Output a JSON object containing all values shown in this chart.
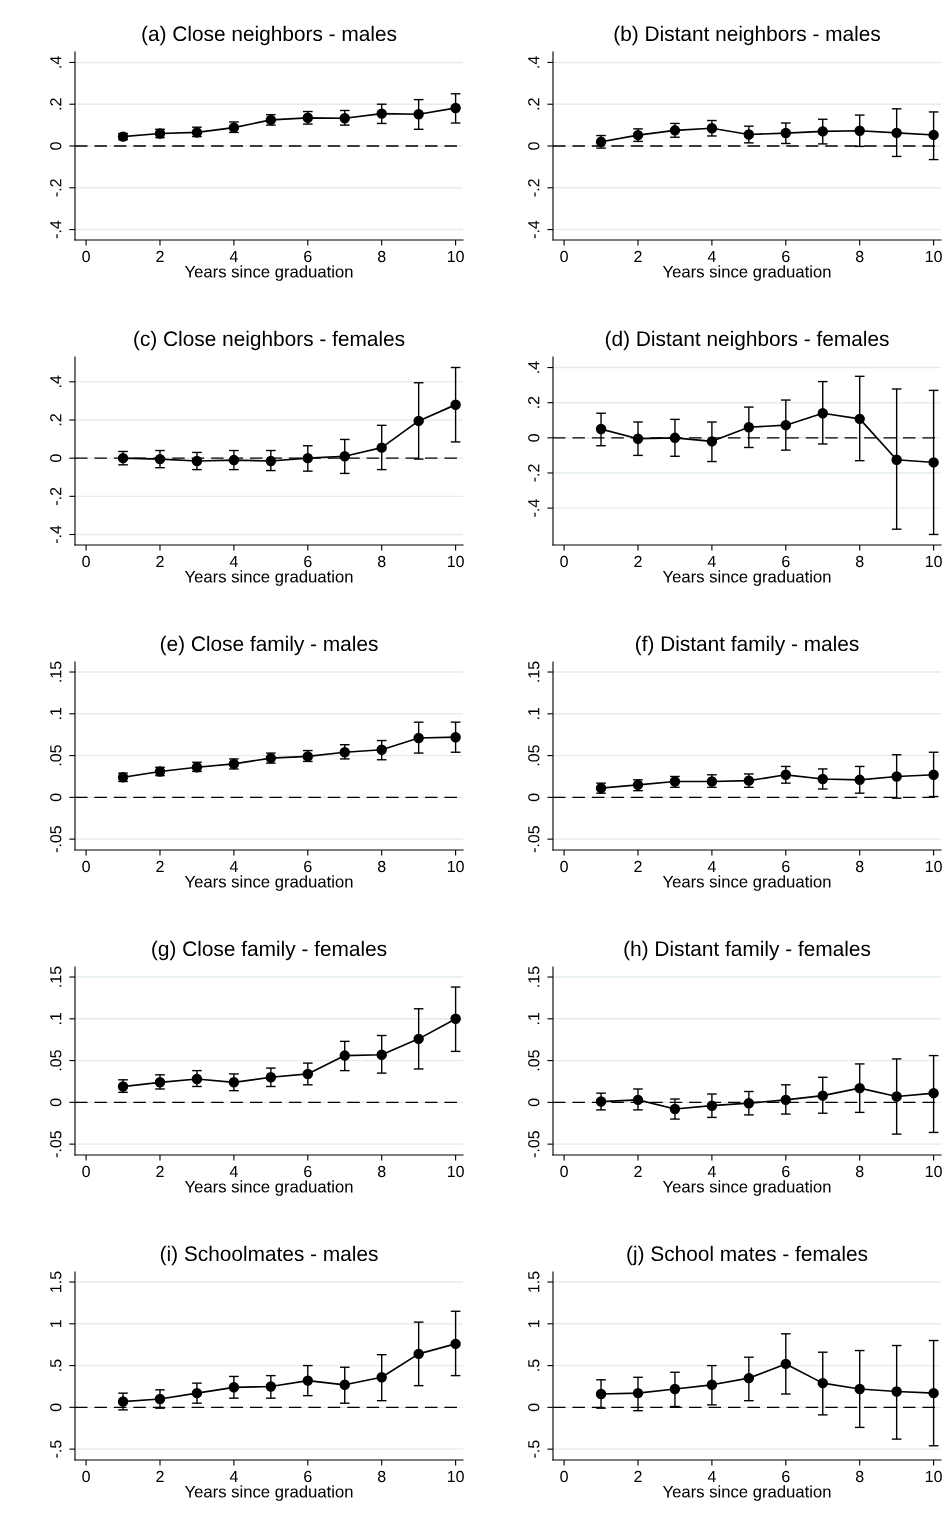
{
  "chart_data": [
    {
      "type": "line",
      "title": "(a) Close neighbors - males",
      "xlabel": "Years since graduation",
      "x": [
        1,
        2,
        3,
        4,
        5,
        6,
        7,
        8,
        9,
        10
      ],
      "color": "#000000",
      "marker": "circle",
      "line_style": "solid",
      "grid": "y",
      "values": [
        0.045,
        0.06,
        0.065,
        0.088,
        0.125,
        0.135,
        0.133,
        0.155,
        0.152,
        0.182
      ],
      "errors": [
        [
          0.03,
          0.06
        ],
        [
          0.04,
          0.08
        ],
        [
          0.045,
          0.09
        ],
        [
          0.065,
          0.115
        ],
        [
          0.1,
          0.15
        ],
        [
          0.105,
          0.165
        ],
        [
          0.1,
          0.17
        ],
        [
          0.108,
          0.2
        ],
        [
          0.08,
          0.222
        ],
        [
          0.11,
          0.25
        ]
      ],
      "xlim": [
        -0.3,
        10.2
      ],
      "xticks": [
        0,
        2,
        4,
        6,
        8,
        10
      ],
      "ylim": [
        -0.45,
        0.45
      ],
      "yticks": [
        {
          "value": -0.4,
          "label": "-.4"
        },
        {
          "value": -0.2,
          "label": "-.2"
        },
        0,
        {
          "value": 0.2,
          "label": ".2"
        },
        {
          "value": 0.4,
          "label": ".4"
        }
      ],
      "ref_lines": [
        {
          "axis": "y",
          "value": 0,
          "line_style": "dashed",
          "color": "#000000"
        }
      ]
    },
    {
      "type": "line",
      "title": "(b) Distant neighbors - males",
      "xlabel": "Years since graduation",
      "x": [
        1,
        2,
        3,
        4,
        5,
        6,
        7,
        8,
        9,
        10
      ],
      "color": "#000000",
      "marker": "circle",
      "line_style": "solid",
      "grid": "y",
      "values": [
        0.02,
        0.052,
        0.075,
        0.085,
        0.055,
        0.062,
        0.07,
        0.073,
        0.063,
        0.053
      ],
      "errors": [
        [
          -0.01,
          0.05
        ],
        [
          0.022,
          0.082
        ],
        [
          0.042,
          0.108
        ],
        [
          0.048,
          0.122
        ],
        [
          0.015,
          0.095
        ],
        [
          0.012,
          0.11
        ],
        [
          0.01,
          0.128
        ],
        [
          -0.002,
          0.148
        ],
        [
          -0.05,
          0.178
        ],
        [
          -0.065,
          0.163
        ]
      ],
      "xlim": [
        -0.3,
        10.2
      ],
      "xticks": [
        0,
        2,
        4,
        6,
        8,
        10
      ],
      "ylim": [
        -0.45,
        0.45
      ],
      "yticks": [
        {
          "value": -0.4,
          "label": "-.4"
        },
        {
          "value": -0.2,
          "label": "-.2"
        },
        0,
        {
          "value": 0.2,
          "label": ".2"
        },
        {
          "value": 0.4,
          "label": ".4"
        }
      ],
      "ref_lines": [
        {
          "axis": "y",
          "value": 0,
          "line_style": "dashed",
          "color": "#000000"
        }
      ]
    },
    {
      "type": "line",
      "title": "(c) Close neighbors - females",
      "xlabel": "Years since graduation",
      "x": [
        1,
        2,
        3,
        4,
        5,
        6,
        7,
        8,
        9,
        10
      ],
      "color": "#000000",
      "marker": "circle",
      "line_style": "solid",
      "grid": "y",
      "values": [
        0,
        -0.005,
        -0.015,
        -0.01,
        -0.015,
        0,
        0.01,
        0.055,
        0.195,
        0.28
      ],
      "errors": [
        [
          -0.035,
          0.035
        ],
        [
          -0.05,
          0.04
        ],
        [
          -0.06,
          0.03
        ],
        [
          -0.06,
          0.04
        ],
        [
          -0.065,
          0.04
        ],
        [
          -0.068,
          0.065
        ],
        [
          -0.08,
          0.098
        ],
        [
          -0.06,
          0.172
        ],
        [
          -0.005,
          0.395
        ],
        [
          0.085,
          0.475
        ]
      ],
      "xlim": [
        -0.3,
        10.2
      ],
      "xticks": [
        0,
        2,
        4,
        6,
        8,
        10
      ],
      "ylim": [
        -0.455,
        0.53
      ],
      "yticks": [
        {
          "value": -0.4,
          "label": "-.4"
        },
        {
          "value": -0.2,
          "label": "-.2"
        },
        0,
        {
          "value": 0.2,
          "label": ".2"
        },
        {
          "value": 0.4,
          "label": ".4"
        }
      ],
      "ref_lines": [
        {
          "axis": "y",
          "value": 0,
          "line_style": "dashed",
          "color": "#000000"
        }
      ]
    },
    {
      "type": "line",
      "title": "(d) Distant neighbors - females",
      "xlabel": "Years since graduation",
      "x": [
        1,
        2,
        3,
        4,
        5,
        6,
        7,
        8,
        9,
        10
      ],
      "color": "#000000",
      "marker": "circle",
      "line_style": "solid",
      "grid": "y",
      "values": [
        0.05,
        -0.005,
        0,
        -0.02,
        0.06,
        0.072,
        0.14,
        0.108,
        -0.125,
        -0.14
      ],
      "errors": [
        [
          -0.045,
          0.14
        ],
        [
          -0.1,
          0.09
        ],
        [
          -0.105,
          0.105
        ],
        [
          -0.135,
          0.09
        ],
        [
          -0.055,
          0.175
        ],
        [
          -0.07,
          0.215
        ],
        [
          -0.035,
          0.32
        ],
        [
          -0.13,
          0.35
        ],
        [
          -0.52,
          0.278
        ],
        [
          -0.55,
          0.27
        ]
      ],
      "xlim": [
        -0.3,
        10.2
      ],
      "xticks": [
        0,
        2,
        4,
        6,
        8,
        10
      ],
      "ylim": [
        -0.61,
        0.46
      ],
      "yticks": [
        {
          "value": -0.4,
          "label": "-.4"
        },
        {
          "value": -0.2,
          "label": "-.2"
        },
        0,
        {
          "value": 0.2,
          "label": ".2"
        },
        {
          "value": 0.4,
          "label": ".4"
        }
      ],
      "ref_lines": [
        {
          "axis": "y",
          "value": 0,
          "line_style": "dashed",
          "color": "#000000"
        }
      ]
    },
    {
      "type": "line",
      "title": "(e) Close family - males",
      "xlabel": "Years since graduation",
      "x": [
        1,
        2,
        3,
        4,
        5,
        6,
        7,
        8,
        9,
        10
      ],
      "color": "#000000",
      "marker": "circle",
      "line_style": "solid",
      "grid": "y",
      "values": [
        0.024,
        0.031,
        0.036,
        0.04,
        0.047,
        0.049,
        0.054,
        0.057,
        0.071,
        0.072
      ],
      "errors": [
        [
          0.019,
          0.029
        ],
        [
          0.026,
          0.036
        ],
        [
          0.031,
          0.042
        ],
        [
          0.034,
          0.046
        ],
        [
          0.041,
          0.053
        ],
        [
          0.043,
          0.056
        ],
        [
          0.046,
          0.063
        ],
        [
          0.045,
          0.068
        ],
        [
          0.053,
          0.09
        ],
        [
          0.054,
          0.09
        ]
      ],
      "xlim": [
        -0.3,
        10.2
      ],
      "xticks": [
        0,
        2,
        4,
        6,
        8,
        10
      ],
      "ylim": [
        -0.063,
        0.162
      ],
      "yticks": [
        {
          "value": -0.05,
          "label": "-.05"
        },
        0,
        {
          "value": 0.05,
          "label": ".05"
        },
        {
          "value": 0.1,
          "label": ".1"
        },
        {
          "value": 0.15,
          "label": ".15"
        }
      ],
      "ref_lines": [
        {
          "axis": "y",
          "value": 0,
          "line_style": "dashed",
          "color": "#000000"
        }
      ]
    },
    {
      "type": "line",
      "title": "(f) Distant family - males",
      "xlabel": "Years since graduation",
      "x": [
        1,
        2,
        3,
        4,
        5,
        6,
        7,
        8,
        9,
        10
      ],
      "color": "#000000",
      "marker": "circle",
      "line_style": "solid",
      "grid": "y",
      "values": [
        0.011,
        0.015,
        0.019,
        0.019,
        0.02,
        0.027,
        0.022,
        0.021,
        0.025,
        0.027
      ],
      "errors": [
        [
          0.005,
          0.017
        ],
        [
          0.008,
          0.021
        ],
        [
          0.012,
          0.025
        ],
        [
          0.012,
          0.027
        ],
        [
          0.012,
          0.028
        ],
        [
          0.017,
          0.037
        ],
        [
          0.01,
          0.034
        ],
        [
          0.005,
          0.037
        ],
        [
          -0.001,
          0.051
        ],
        [
          0.001,
          0.054
        ]
      ],
      "xlim": [
        -0.3,
        10.2
      ],
      "xticks": [
        0,
        2,
        4,
        6,
        8,
        10
      ],
      "ylim": [
        -0.063,
        0.162
      ],
      "yticks": [
        {
          "value": -0.05,
          "label": "-.05"
        },
        0,
        {
          "value": 0.05,
          "label": ".05"
        },
        {
          "value": 0.1,
          "label": ".1"
        },
        {
          "value": 0.15,
          "label": ".15"
        }
      ],
      "ref_lines": [
        {
          "axis": "y",
          "value": 0,
          "line_style": "dashed",
          "color": "#000000"
        }
      ]
    },
    {
      "type": "line",
      "title": "(g) Close family - females",
      "xlabel": "Years since graduation",
      "x": [
        1,
        2,
        3,
        4,
        5,
        6,
        7,
        8,
        9,
        10
      ],
      "color": "#000000",
      "marker": "circle",
      "line_style": "solid",
      "grid": "y",
      "values": [
        0.019,
        0.024,
        0.028,
        0.024,
        0.03,
        0.034,
        0.056,
        0.057,
        0.076,
        0.1
      ],
      "errors": [
        [
          0.012,
          0.027
        ],
        [
          0.016,
          0.033
        ],
        [
          0.019,
          0.038
        ],
        [
          0.014,
          0.034
        ],
        [
          0.019,
          0.041
        ],
        [
          0.021,
          0.047
        ],
        [
          0.038,
          0.073
        ],
        [
          0.035,
          0.08
        ],
        [
          0.04,
          0.112
        ],
        [
          0.061,
          0.138
        ]
      ],
      "xlim": [
        -0.3,
        10.2
      ],
      "xticks": [
        0,
        2,
        4,
        6,
        8,
        10
      ],
      "ylim": [
        -0.063,
        0.162
      ],
      "yticks": [
        {
          "value": -0.05,
          "label": "-.05"
        },
        0,
        {
          "value": 0.05,
          "label": ".05"
        },
        {
          "value": 0.1,
          "label": ".1"
        },
        {
          "value": 0.15,
          "label": ".15"
        }
      ],
      "ref_lines": [
        {
          "axis": "y",
          "value": 0,
          "line_style": "dashed",
          "color": "#000000"
        }
      ]
    },
    {
      "type": "line",
      "title": "(h) Distant family - females",
      "xlabel": "Years since graduation",
      "x": [
        1,
        2,
        3,
        4,
        5,
        6,
        7,
        8,
        9,
        10
      ],
      "color": "#000000",
      "marker": "circle",
      "line_style": "solid",
      "grid": "y",
      "values": [
        0.001,
        0.003,
        -0.008,
        -0.004,
        -0.001,
        0.003,
        0.008,
        0.017,
        0.007,
        0.011
      ],
      "errors": [
        [
          -0.009,
          0.011
        ],
        [
          -0.009,
          0.016
        ],
        [
          -0.02,
          0.004
        ],
        [
          -0.018,
          0.01
        ],
        [
          -0.015,
          0.013
        ],
        [
          -0.014,
          0.021
        ],
        [
          -0.013,
          0.03
        ],
        [
          -0.012,
          0.046
        ],
        [
          -0.038,
          0.052
        ],
        [
          -0.036,
          0.056
        ]
      ],
      "xlim": [
        -0.3,
        10.2
      ],
      "xticks": [
        0,
        2,
        4,
        6,
        8,
        10
      ],
      "ylim": [
        -0.063,
        0.162
      ],
      "yticks": [
        {
          "value": -0.05,
          "label": "-.05"
        },
        0,
        {
          "value": 0.05,
          "label": ".05"
        },
        {
          "value": 0.1,
          "label": ".1"
        },
        {
          "value": 0.15,
          "label": ".15"
        }
      ],
      "ref_lines": [
        {
          "axis": "y",
          "value": 0,
          "line_style": "dashed",
          "color": "#000000"
        }
      ]
    },
    {
      "type": "line",
      "title": "(i) Schoolmates - males",
      "xlabel": "Years since graduation",
      "x": [
        1,
        2,
        3,
        4,
        5,
        6,
        7,
        8,
        9,
        10
      ],
      "color": "#000000",
      "marker": "circle",
      "line_style": "solid",
      "grid": "y",
      "values": [
        0.07,
        0.1,
        0.17,
        0.24,
        0.25,
        0.32,
        0.27,
        0.36,
        0.64,
        0.76
      ],
      "errors": [
        [
          -0.03,
          0.17
        ],
        [
          -0.01,
          0.21
        ],
        [
          0.05,
          0.29
        ],
        [
          0.11,
          0.37
        ],
        [
          0.11,
          0.38
        ],
        [
          0.14,
          0.5
        ],
        [
          0.05,
          0.48
        ],
        [
          0.08,
          0.63
        ],
        [
          0.26,
          1.02
        ],
        [
          0.38,
          1.15
        ]
      ],
      "xlim": [
        -0.3,
        10.2
      ],
      "xticks": [
        0,
        2,
        4,
        6,
        8,
        10
      ],
      "ylim": [
        -0.63,
        1.62
      ],
      "yticks": [
        {
          "value": -0.5,
          "label": "-.5"
        },
        0,
        {
          "value": 0.5,
          "label": ".5"
        },
        1,
        1.5
      ],
      "ref_lines": [
        {
          "axis": "y",
          "value": 0,
          "line_style": "dashed",
          "color": "#000000"
        }
      ]
    },
    {
      "type": "line",
      "title": "(j) School mates - females",
      "xlabel": "Years since graduation",
      "x": [
        1,
        2,
        3,
        4,
        5,
        6,
        7,
        8,
        9,
        10
      ],
      "color": "#000000",
      "marker": "circle",
      "line_style": "solid",
      "grid": "y",
      "values": [
        0.16,
        0.17,
        0.22,
        0.27,
        0.35,
        0.52,
        0.29,
        0.22,
        0.19,
        0.17
      ],
      "errors": [
        [
          -0.01,
          0.33
        ],
        [
          -0.04,
          0.36
        ],
        [
          0.01,
          0.42
        ],
        [
          0.03,
          0.5
        ],
        [
          0.08,
          0.6
        ],
        [
          0.16,
          0.88
        ],
        [
          -0.09,
          0.66
        ],
        [
          -0.24,
          0.68
        ],
        [
          -0.38,
          0.74
        ],
        [
          -0.46,
          0.8
        ]
      ],
      "xlim": [
        -0.3,
        10.2
      ],
      "xticks": [
        0,
        2,
        4,
        6,
        8,
        10
      ],
      "ylim": [
        -0.63,
        1.62
      ],
      "yticks": [
        {
          "value": -0.5,
          "label": "-.5"
        },
        0,
        {
          "value": 0.5,
          "label": ".5"
        },
        1,
        1.5
      ],
      "ref_lines": [
        {
          "axis": "y",
          "value": 0,
          "line_style": "dashed",
          "color": "#000000"
        }
      ]
    }
  ]
}
